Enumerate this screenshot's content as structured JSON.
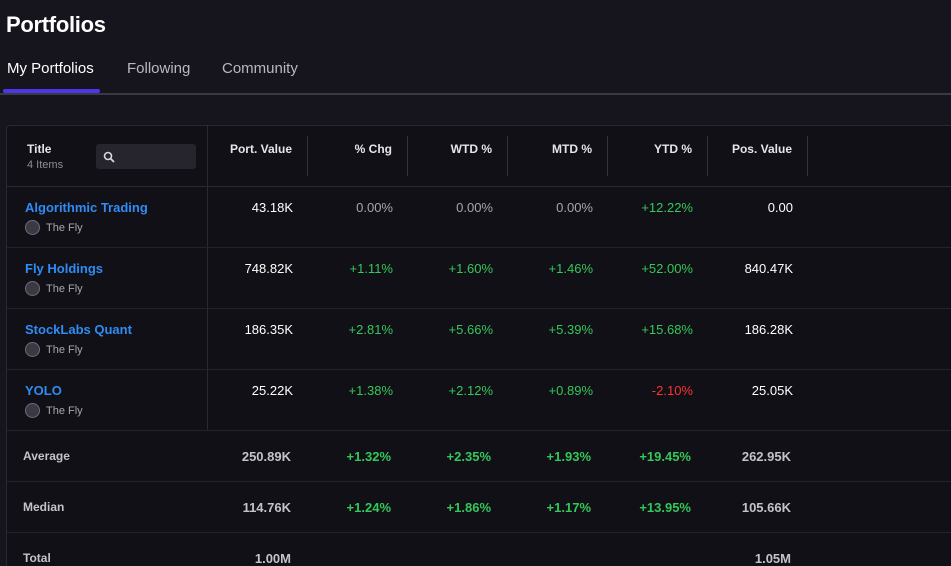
{
  "page_title": "Portfolios",
  "tabs": [
    {
      "label": "My Portfolios",
      "active": true
    },
    {
      "label": "Following",
      "active": false
    },
    {
      "label": "Community",
      "active": false
    }
  ],
  "table": {
    "title_header": "Title",
    "items_count": "4 Items",
    "search_placeholder": "",
    "columns": [
      "Port. Value",
      "% Chg",
      "WTD %",
      "MTD %",
      "YTD %",
      "Pos. Value"
    ],
    "rows": [
      {
        "name": "Algorithmic Trading",
        "owner": "The Fly",
        "port_value": "43.18K",
        "chg": "0.00%",
        "wtd": "0.00%",
        "mtd": "0.00%",
        "ytd": "+12.22%",
        "pos_value": "0.00"
      },
      {
        "name": "Fly Holdings",
        "owner": "The Fly",
        "port_value": "748.82K",
        "chg": "+1.11%",
        "wtd": "+1.60%",
        "mtd": "+1.46%",
        "ytd": "+52.00%",
        "pos_value": "840.47K"
      },
      {
        "name": "StockLabs Quant",
        "owner": "The Fly",
        "port_value": "186.35K",
        "chg": "+2.81%",
        "wtd": "+5.66%",
        "mtd": "+5.39%",
        "ytd": "+15.68%",
        "pos_value": "186.28K"
      },
      {
        "name": "YOLO",
        "owner": "The Fly",
        "port_value": "25.22K",
        "chg": "+1.38%",
        "wtd": "+2.12%",
        "mtd": "+0.89%",
        "ytd": "-2.10%",
        "pos_value": "25.05K"
      }
    ],
    "summary": [
      {
        "label": "Average",
        "port_value": "250.89K",
        "chg": "+1.32%",
        "wtd": "+2.35%",
        "mtd": "+1.93%",
        "ytd": "+19.45%",
        "pos_value": "262.95K"
      },
      {
        "label": "Median",
        "port_value": "114.76K",
        "chg": "+1.24%",
        "wtd": "+1.86%",
        "mtd": "+1.17%",
        "ytd": "+13.95%",
        "pos_value": "105.66K"
      },
      {
        "label": "Total",
        "port_value": "1.00M",
        "chg": "",
        "wtd": "",
        "mtd": "",
        "ytd": "",
        "pos_value": "1.05M"
      }
    ]
  },
  "colors": {
    "background": "#16151d",
    "link": "#2f8cf5",
    "positive": "#34c759",
    "negative": "#ff3131",
    "neutral": "#a7a6b0",
    "tab_accent": "#4b36e8"
  }
}
